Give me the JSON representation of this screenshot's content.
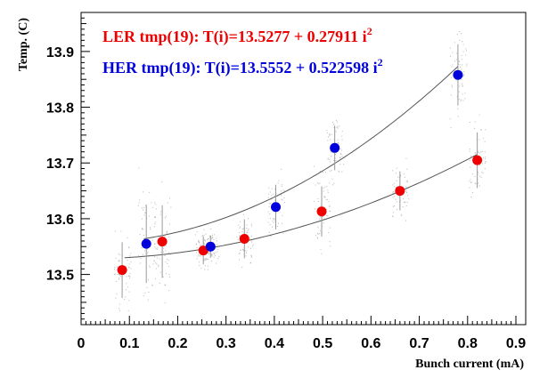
{
  "chart_data": {
    "type": "scatter",
    "xlabel": "Bunch current (mA)",
    "ylabel": "Temp. (C)",
    "xlim": [
      0,
      0.9
    ],
    "ylim": [
      13.41,
      13.97
    ],
    "x_ticks": [
      "0",
      "0.1",
      "0.2",
      "0.3",
      "0.4",
      "0.5",
      "0.6",
      "0.7",
      "0.8",
      "0.9"
    ],
    "y_ticks": [
      "13.5",
      "13.6",
      "13.7",
      "13.8",
      "13.9"
    ],
    "grid": false,
    "series": [
      {
        "name": "LER tmp(19)",
        "label": "LER tmp(19): T(i)=13.5277 + 0.27911 i",
        "exponent": "2",
        "color": "#ee0000",
        "fit": {
          "a": 13.5277,
          "b": 0.27911,
          "x_range": [
            0.09,
            0.82
          ]
        },
        "points": [
          {
            "x": 0.085,
            "y": 13.508,
            "err": 0.05
          },
          {
            "x": 0.168,
            "y": 13.559,
            "err": 0.065
          },
          {
            "x": 0.253,
            "y": 13.543,
            "err": 0.025
          },
          {
            "x": 0.338,
            "y": 13.564,
            "err": 0.035
          },
          {
            "x": 0.498,
            "y": 13.613,
            "err": 0.045
          },
          {
            "x": 0.66,
            "y": 13.65,
            "err": 0.035
          },
          {
            "x": 0.82,
            "y": 13.705,
            "err": 0.05
          }
        ]
      },
      {
        "name": "HER tmp(19)",
        "label": "HER tmp(19): T(i)=13.5552 + 0.522598 i",
        "exponent": "2",
        "color": "#0000dd",
        "fit": {
          "a": 13.5552,
          "b": 0.522598,
          "x_range": [
            0.13,
            0.78
          ]
        },
        "points": [
          {
            "x": 0.135,
            "y": 13.555,
            "err": 0.07
          },
          {
            "x": 0.268,
            "y": 13.55,
            "err": 0.02
          },
          {
            "x": 0.403,
            "y": 13.621,
            "err": 0.04
          },
          {
            "x": 0.525,
            "y": 13.727,
            "err": 0.04
          },
          {
            "x": 0.78,
            "y": 13.858,
            "err": 0.055
          }
        ]
      }
    ]
  }
}
